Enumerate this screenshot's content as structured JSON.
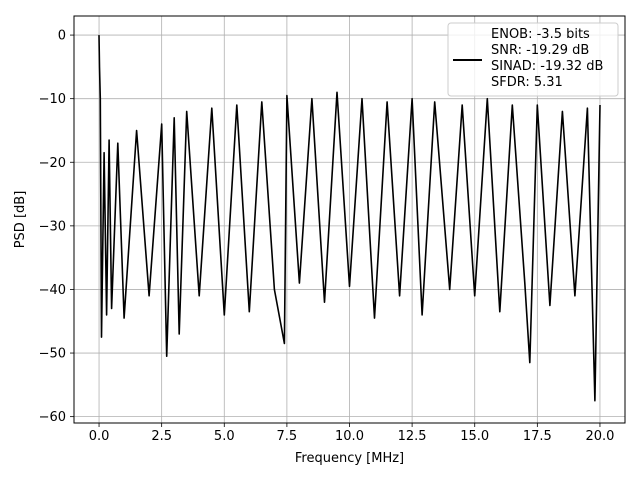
{
  "chart_data": {
    "type": "line",
    "title": "",
    "xlabel": "Frequency [MHz]",
    "ylabel": "PSD [dB]",
    "xlim": [
      -1.0,
      21.0
    ],
    "ylim": [
      -61.0,
      3.0
    ],
    "xticks": [
      0.0,
      2.5,
      5.0,
      7.5,
      10.0,
      12.5,
      15.0,
      17.5,
      20.0
    ],
    "xtick_labels": [
      "0.0",
      "2.5",
      "5.0",
      "7.5",
      "10.0",
      "12.5",
      "15.0",
      "17.5",
      "20.0"
    ],
    "yticks": [
      0,
      -10,
      -20,
      -30,
      -40,
      -50,
      -60
    ],
    "ytick_labels": [
      "0",
      "−10",
      "−20",
      "−30",
      "−40",
      "−50",
      "−60"
    ],
    "grid": true,
    "legend_position": "top-right",
    "legend_entries": [
      "ENOB: -3.5 bits",
      "SNR: -19.29 dB",
      "SINAD: -19.32 dB",
      "SFDR: 5.31"
    ],
    "line_color": "#000000",
    "series": [
      {
        "name": "ENOB: -3.5 bits",
        "x": [
          0.0,
          0.02,
          0.05,
          0.1,
          0.2,
          0.3,
          0.4,
          0.5,
          0.75,
          1.0,
          1.5,
          2.0,
          2.5,
          2.7,
          3.0,
          3.2,
          3.5,
          4.0,
          4.5,
          5.0,
          5.5,
          6.0,
          6.5,
          7.0,
          7.4,
          7.5,
          8.0,
          8.5,
          9.0,
          9.5,
          10.0,
          10.5,
          11.0,
          11.5,
          12.0,
          12.5,
          12.9,
          13.4,
          14.0,
          14.5,
          15.0,
          15.5,
          16.0,
          16.5,
          17.0,
          17.2,
          17.5,
          18.0,
          18.5,
          19.0,
          19.5,
          19.8,
          20.0
        ],
        "y": [
          0.0,
          -5.0,
          -10.0,
          -47.5,
          -18.5,
          -44.0,
          -16.5,
          -43.0,
          -17.0,
          -44.5,
          -15.0,
          -41.0,
          -14.0,
          -50.5,
          -13.0,
          -47.0,
          -12.0,
          -41.0,
          -11.5,
          -44.0,
          -11.0,
          -43.5,
          -10.5,
          -40.0,
          -48.5,
          -9.5,
          -39.0,
          -10.0,
          -42.0,
          -9.0,
          -39.5,
          -10.0,
          -44.5,
          -10.5,
          -41.0,
          -10.0,
          -44.0,
          -10.5,
          -40.0,
          -11.0,
          -41.0,
          -10.0,
          -43.5,
          -11.0,
          -39.0,
          -51.5,
          -11.0,
          -42.5,
          -12.0,
          -41.0,
          -11.5,
          -57.5,
          -11.0
        ]
      }
    ]
  }
}
